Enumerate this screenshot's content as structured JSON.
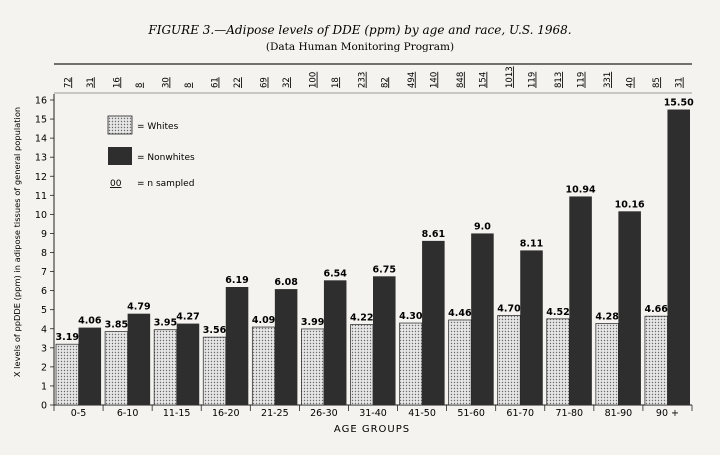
{
  "chart_data": {
    "type": "bar",
    "title": "FIGURE 3.—Adipose levels of DDE (ppm) by age and race, U.S. 1968.",
    "subtitle": "(Data Human Monitoring Program)",
    "xlabel": "AGE GROUPS",
    "ylabel": "X levels of ppDDE (ppm) in adipose tissues of general population",
    "ylim": [
      0,
      16
    ],
    "yticks": [
      "0",
      "1",
      "2",
      "3",
      "4",
      "5",
      "6",
      "7",
      "8",
      "9",
      "10",
      "11",
      "12",
      "13",
      "14",
      "15",
      "16"
    ],
    "categories": [
      "0-5",
      "6-10",
      "11-15",
      "16-20",
      "21-25",
      "26-30",
      "31-40",
      "41-50",
      "51-60",
      "61-70",
      "71-80",
      "81-90",
      "90 +"
    ],
    "series": [
      {
        "name": "Whites",
        "values": [
          3.19,
          3.85,
          3.95,
          3.56,
          4.09,
          3.99,
          4.22,
          4.3,
          4.46,
          4.7,
          4.52,
          4.28,
          4.66
        ],
        "labels": [
          "3.19",
          "3.85",
          "3.95",
          "3.56",
          "4.09",
          "3.99",
          "4.22",
          "4.30",
          "4.46",
          "4.70",
          "4.52",
          "4.28",
          "4.66"
        ],
        "n_sampled": [
          "72",
          "16",
          "30",
          "61",
          "69",
          "100",
          "233",
          "494",
          "848",
          "1013",
          "813",
          "331",
          "85"
        ]
      },
      {
        "name": "Nonwhites",
        "values": [
          4.06,
          4.79,
          4.27,
          6.19,
          6.08,
          6.54,
          6.75,
          8.61,
          9.0,
          8.11,
          10.94,
          10.16,
          15.5
        ],
        "labels": [
          "4.06",
          "4.79",
          "4.27",
          "6.19",
          "6.08",
          "6.54",
          "6.75",
          "8.61",
          "9.0",
          "8.11",
          "10.94",
          "10.16",
          "15.50"
        ],
        "n_sampled": [
          "31",
          "8",
          "8",
          "22",
          "32",
          "18",
          "82",
          "140",
          "154",
          "119",
          "119",
          "40",
          "31"
        ]
      }
    ],
    "legend": {
      "whites": "= Whites",
      "nonwhites": "= Nonwhites",
      "n_symbol": "00",
      "n_text": "= n sampled"
    },
    "colors": {
      "whites": "#cfcfcf",
      "nonwhites": "#2e2e2e"
    },
    "grid": false
  }
}
